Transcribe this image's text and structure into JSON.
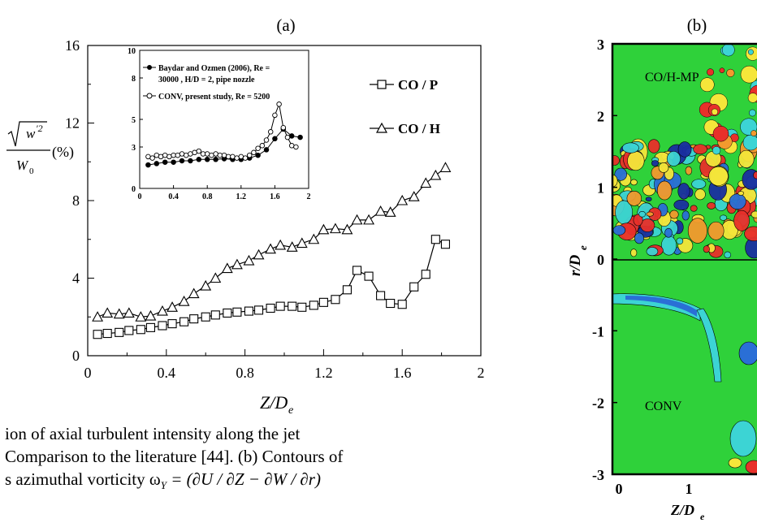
{
  "panel_a": {
    "label": "(a)",
    "ylabel_fraction": "√w'² / W0",
    "ylabel_unit": "(%)",
    "xlabel": "Z/De",
    "legend": [
      "CO / P",
      "CO / H"
    ],
    "inset_legend": [
      "Baydar and Ozmen (2006), Re =",
      "30000 , H/D = 2, pipe nozzle",
      "CONV, present study, Re = 5200"
    ]
  },
  "panel_b": {
    "label": "(b)",
    "ylabel": "r/De",
    "xlabel": "Z/De",
    "yticks": [
      "3",
      "2",
      "1",
      "0",
      "-1",
      "-2",
      "-3"
    ],
    "xticks": [
      "0",
      "1"
    ],
    "top_label": "CO/H-MP",
    "bottom_label": "CONV"
  },
  "caption": {
    "line1": "ion of axial turbulent intensity along the jet",
    "line2": "Comparison to the literature [44].  (b) Contours of",
    "line3": "s azimuthal vorticity  ω",
    "line3_sub": "Y",
    "line3_formula": " = (∂U / ∂Z − ∂W / ∂r)"
  },
  "chart_data": [
    {
      "type": "line",
      "title": "(a)",
      "xlabel": "Z/De",
      "ylabel": "√w'² / W0 (%)",
      "xlim": [
        0,
        2
      ],
      "ylim": [
        0,
        16
      ],
      "xticks": [
        "0",
        "0.4",
        "0.8",
        "1.2",
        "1.6",
        "2"
      ],
      "yticks": [
        "0",
        "4",
        "8",
        "12",
        "16"
      ],
      "legend": "top-right",
      "series": [
        {
          "name": "CO / P",
          "marker": "square",
          "x": [
            0.05,
            0.1,
            0.16,
            0.21,
            0.27,
            0.32,
            0.38,
            0.43,
            0.49,
            0.54,
            0.6,
            0.65,
            0.71,
            0.76,
            0.82,
            0.87,
            0.93,
            0.98,
            1.04,
            1.09,
            1.15,
            1.2,
            1.26,
            1.32,
            1.37,
            1.43,
            1.49,
            1.54,
            1.6,
            1.66,
            1.72,
            1.77,
            1.82
          ],
          "y": [
            1.1,
            1.15,
            1.2,
            1.3,
            1.35,
            1.45,
            1.55,
            1.65,
            1.75,
            1.9,
            2.0,
            2.1,
            2.2,
            2.25,
            2.3,
            2.35,
            2.45,
            2.55,
            2.55,
            2.5,
            2.6,
            2.75,
            2.9,
            3.4,
            4.4,
            4.1,
            3.1,
            2.7,
            2.65,
            3.55,
            4.2,
            6.0,
            5.75
          ]
        },
        {
          "name": "CO / H",
          "marker": "triangle",
          "x": [
            0.05,
            0.1,
            0.16,
            0.21,
            0.27,
            0.32,
            0.38,
            0.43,
            0.49,
            0.54,
            0.6,
            0.65,
            0.71,
            0.76,
            0.82,
            0.87,
            0.93,
            0.98,
            1.04,
            1.09,
            1.15,
            1.2,
            1.26,
            1.32,
            1.37,
            1.43,
            1.49,
            1.54,
            1.6,
            1.66,
            1.72,
            1.77,
            1.82
          ],
          "y": [
            2.0,
            2.2,
            2.15,
            2.2,
            2.0,
            2.05,
            2.3,
            2.5,
            2.8,
            3.2,
            3.6,
            4.0,
            4.5,
            4.7,
            4.9,
            5.2,
            5.5,
            5.7,
            5.6,
            5.8,
            6.0,
            6.5,
            6.55,
            6.5,
            7.0,
            7.0,
            7.45,
            7.4,
            8.0,
            8.2,
            8.9,
            9.3,
            9.7
          ]
        }
      ]
    },
    {
      "type": "line",
      "title": "inset",
      "xlim": [
        0,
        2
      ],
      "ylim": [
        0,
        10
      ],
      "xticks": [
        "0",
        "0.4",
        "0.8",
        "1.2",
        "1.6",
        "2"
      ],
      "yticks": [
        "0",
        "3",
        "5",
        "8",
        "10"
      ],
      "legend": "top-left",
      "series": [
        {
          "name": "Baydar and Ozmen (2006), Re = 30000 , H/D = 2, pipe nozzle",
          "marker": "filled-circle",
          "x": [
            0.1,
            0.2,
            0.3,
            0.4,
            0.5,
            0.6,
            0.7,
            0.8,
            0.9,
            1.0,
            1.1,
            1.2,
            1.3,
            1.4,
            1.5,
            1.6,
            1.7,
            1.8,
            1.9
          ],
          "y": [
            1.7,
            1.8,
            1.9,
            1.9,
            2.0,
            2.0,
            2.1,
            2.1,
            2.1,
            2.15,
            2.1,
            2.1,
            2.2,
            2.4,
            2.8,
            3.6,
            4.3,
            3.8,
            3.7
          ]
        },
        {
          "name": "CONV, present study, Re = 5200",
          "marker": "open-circle",
          "x": [
            0.1,
            0.15,
            0.2,
            0.25,
            0.3,
            0.35,
            0.4,
            0.45,
            0.5,
            0.55,
            0.6,
            0.65,
            0.7,
            0.75,
            0.8,
            0.85,
            0.9,
            0.95,
            1.0,
            1.05,
            1.1,
            1.15,
            1.2,
            1.25,
            1.3,
            1.35,
            1.4,
            1.45,
            1.5,
            1.55,
            1.6,
            1.65,
            1.7,
            1.75,
            1.8,
            1.85
          ],
          "y": [
            2.3,
            2.2,
            2.4,
            2.3,
            2.4,
            2.3,
            2.4,
            2.4,
            2.5,
            2.4,
            2.5,
            2.6,
            2.7,
            2.5,
            2.5,
            2.4,
            2.5,
            2.4,
            2.4,
            2.3,
            2.3,
            2.2,
            2.3,
            2.2,
            2.4,
            2.6,
            2.9,
            3.1,
            3.5,
            4.1,
            5.3,
            6.1,
            4.4,
            3.7,
            3.1,
            3.0
          ]
        }
      ]
    },
    {
      "type": "heatmap",
      "title": "(b)",
      "xlabel": "Z/De",
      "ylabel": "r/De",
      "ylim": [
        -3,
        3
      ],
      "xticks": [
        "0",
        "1"
      ],
      "yticks": [
        "3",
        "2",
        "1",
        "0",
        "-1",
        "-2",
        "-3"
      ],
      "annotations": [
        "CO/H-MP",
        "CONV"
      ]
    }
  ]
}
